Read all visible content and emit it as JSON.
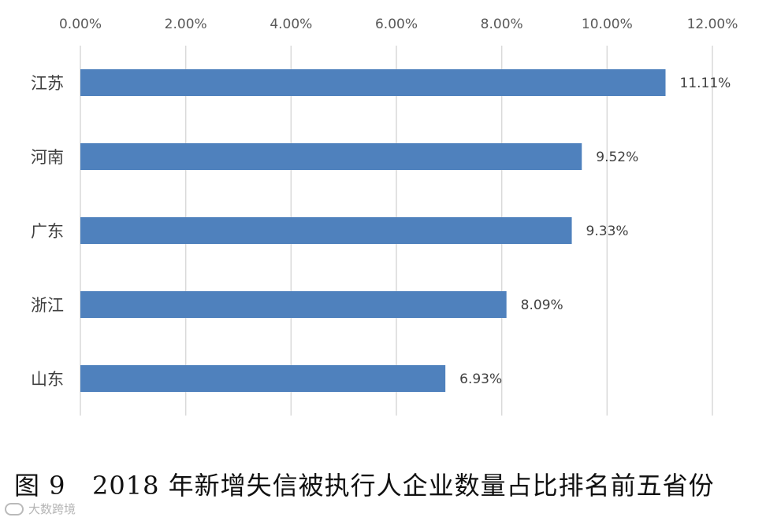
{
  "chart_data": {
    "type": "bar",
    "orientation": "horizontal",
    "categories": [
      "江苏",
      "河南",
      "广东",
      "浙江",
      "山东"
    ],
    "values": [
      11.11,
      9.52,
      9.33,
      8.09,
      6.93
    ],
    "data_labels": [
      "11.11%",
      "9.52%",
      "9.33%",
      "8.09%",
      "6.93%"
    ],
    "x_ticks": [
      "0.00%",
      "2.00%",
      "4.00%",
      "6.00%",
      "8.00%",
      "10.00%",
      "12.00%"
    ],
    "xlim": [
      0,
      12
    ],
    "x_axis_position": "top",
    "grid": "vertical",
    "bar_color": "#4f81bd",
    "grid_color": "#d9d9d9",
    "legend": "none",
    "title": "",
    "xlabel": "",
    "ylabel": ""
  },
  "caption": "图 9   2018 年新增失信被执行人企业数量占比排名前五省份",
  "watermark": "大数跨境"
}
